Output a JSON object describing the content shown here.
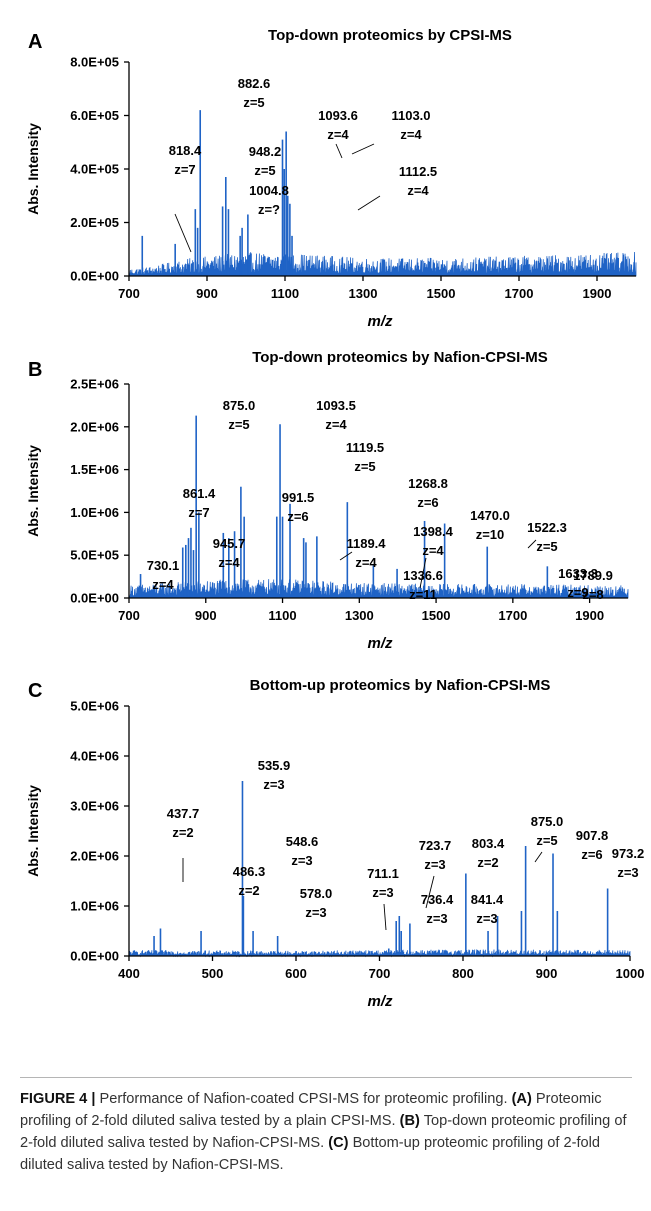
{
  "chart_data": [
    {
      "type": "line",
      "panel": "A",
      "title": "Top-down proteomics by CPSI-MS",
      "xlabel": "m/z",
      "ylabel": "Abs. Intensity",
      "xlim": [
        700,
        2000
      ],
      "ylim": [
        0,
        800000
      ],
      "xticks": [
        700,
        900,
        1100,
        1300,
        1500,
        1700,
        1900
      ],
      "xtick_labels": [
        "700",
        "900",
        "1100",
        "1300",
        "1500",
        "1700",
        "1900"
      ],
      "yticks": [
        0,
        200000,
        400000,
        600000,
        800000
      ],
      "ytick_labels": [
        "0.0E+00",
        "2.0E+05",
        "4.0E+05",
        "6.0E+05",
        "8.0E+05"
      ],
      "baseline": [
        {
          "x": 700,
          "y": 18000
        },
        {
          "x": 760,
          "y": 25000
        },
        {
          "x": 860,
          "y": 45000
        },
        {
          "x": 1000,
          "y": 60000
        },
        {
          "x": 1150,
          "y": 55000
        },
        {
          "x": 1300,
          "y": 45000
        },
        {
          "x": 1500,
          "y": 45000
        },
        {
          "x": 1700,
          "y": 50000
        },
        {
          "x": 1850,
          "y": 55000
        },
        {
          "x": 2000,
          "y": 60000
        }
      ],
      "peaks": [
        {
          "x": 818.4,
          "y": 120000,
          "label": "818.4",
          "charge": "z=7"
        },
        {
          "x": 882.6,
          "y": 620000,
          "label": "882.6",
          "charge": "z=5"
        },
        {
          "x": 948.2,
          "y": 370000,
          "label": "948.2",
          "charge": "z=5"
        },
        {
          "x": 1004.8,
          "y": 230000,
          "label": "1004.8",
          "charge": "z=?"
        },
        {
          "x": 1093.6,
          "y": 510000,
          "label": "1093.6",
          "charge": "z=4"
        },
        {
          "x": 1103.0,
          "y": 540000,
          "label": "1103.0",
          "charge": "z=4"
        },
        {
          "x": 1112.5,
          "y": 270000,
          "label": "1112.5",
          "charge": "z=4"
        },
        {
          "x": 734,
          "y": 150000
        },
        {
          "x": 870,
          "y": 250000
        },
        {
          "x": 876,
          "y": 180000
        },
        {
          "x": 940,
          "y": 260000
        },
        {
          "x": 955,
          "y": 250000
        },
        {
          "x": 985,
          "y": 150000
        },
        {
          "x": 990,
          "y": 180000
        },
        {
          "x": 1098,
          "y": 400000
        },
        {
          "x": 1107,
          "y": 300000
        },
        {
          "x": 1118,
          "y": 150000
        }
      ]
    },
    {
      "type": "line",
      "panel": "B",
      "title": "Top-down proteomics by  Nafion-CPSI-MS",
      "xlabel": "m/z",
      "ylabel": "Abs. Intensity",
      "xlim": [
        700,
        2000
      ],
      "ylim": [
        0,
        2500000
      ],
      "xticks": [
        700,
        900,
        1100,
        1300,
        1500,
        1700,
        1900
      ],
      "xtick_labels": [
        "700",
        "900",
        "1100",
        "1300",
        "1500",
        "1700",
        "1900"
      ],
      "yticks": [
        0,
        500000,
        1000000,
        1500000,
        2000000,
        2500000
      ],
      "ytick_labels": [
        "0.0E+00",
        "5.0E+05",
        "1.0E+06",
        "1.5E+06",
        "2.0E+06",
        "2.5E+06"
      ],
      "baseline": [
        {
          "x": 700,
          "y": 100000
        },
        {
          "x": 900,
          "y": 140000
        },
        {
          "x": 1100,
          "y": 150000
        },
        {
          "x": 1300,
          "y": 120000
        },
        {
          "x": 1500,
          "y": 110000
        },
        {
          "x": 1700,
          "y": 110000
        },
        {
          "x": 2000,
          "y": 100000
        }
      ],
      "peaks": [
        {
          "x": 730.1,
          "y": 280000,
          "label": "730.1",
          "charge": "z=4"
        },
        {
          "x": 861.4,
          "y": 820000,
          "label": "861.4",
          "charge": "z=7"
        },
        {
          "x": 875.0,
          "y": 2130000,
          "label": "875.0",
          "charge": "z=5"
        },
        {
          "x": 945.7,
          "y": 760000,
          "label": "945.7",
          "charge": "z=4"
        },
        {
          "x": 991.5,
          "y": 1300000,
          "label": "991.5",
          "charge": "z=6"
        },
        {
          "x": 1093.5,
          "y": 2030000,
          "label": "1093.5",
          "charge": "z=4"
        },
        {
          "x": 1119.5,
          "y": 1100000,
          "label": "1119.5",
          "charge": "z=5"
        },
        {
          "x": 1189.4,
          "y": 720000,
          "label": "1189.4",
          "charge": "z=4"
        },
        {
          "x": 1268.8,
          "y": 1120000,
          "label": "1268.8",
          "charge": "z=6"
        },
        {
          "x": 1336.6,
          "y": 380000,
          "label": "1336.6",
          "charge": "z=11"
        },
        {
          "x": 1398.4,
          "y": 340000,
          "label": "1398.4",
          "charge": "z=4"
        },
        {
          "x": 1470.0,
          "y": 900000,
          "label": "1470.0",
          "charge": "z=10"
        },
        {
          "x": 1522.3,
          "y": 870000,
          "label": "1522.3",
          "charge": "z=5"
        },
        {
          "x": 1633.3,
          "y": 600000,
          "label": "1633.3",
          "charge": "z=9"
        },
        {
          "x": 1789.9,
          "y": 370000,
          "label": "1789.9",
          "charge": "z=8"
        },
        {
          "x": 840,
          "y": 590000
        },
        {
          "x": 848,
          "y": 620000
        },
        {
          "x": 855,
          "y": 700000
        },
        {
          "x": 868,
          "y": 560000
        },
        {
          "x": 882,
          "y": 1000000
        },
        {
          "x": 960,
          "y": 700000
        },
        {
          "x": 975,
          "y": 780000
        },
        {
          "x": 1000,
          "y": 950000
        },
        {
          "x": 1085,
          "y": 950000
        },
        {
          "x": 1100,
          "y": 950000
        },
        {
          "x": 1155,
          "y": 700000
        },
        {
          "x": 1161,
          "y": 650000
        }
      ]
    },
    {
      "type": "line",
      "panel": "C",
      "title": "Bottom-up proteomics by Nafion-CPSI-MS",
      "xlabel": "m/z",
      "ylabel": "Abs. Intensity",
      "xlim": [
        400,
        1000
      ],
      "ylim": [
        0,
        5000000
      ],
      "xticks": [
        400,
        500,
        600,
        700,
        800,
        900,
        1000
      ],
      "xtick_labels": [
        "400",
        "500",
        "600",
        "700",
        "800",
        "900",
        "1000"
      ],
      "yticks": [
        0,
        1000000,
        2000000,
        3000000,
        4000000,
        5000000
      ],
      "ytick_labels": [
        "0.0E+00",
        "1.0E+06",
        "2.0E+06",
        "3.0E+06",
        "4.0E+06",
        "5.0E+06"
      ],
      "baseline": [
        {
          "x": 400,
          "y": 80000
        },
        {
          "x": 600,
          "y": 70000
        },
        {
          "x": 800,
          "y": 90000
        },
        {
          "x": 1000,
          "y": 80000
        }
      ],
      "peaks": [
        {
          "x": 437.7,
          "y": 550000,
          "label": "437.7",
          "charge": "z=2"
        },
        {
          "x": 486.3,
          "y": 500000,
          "label": "486.3",
          "charge": "z=2"
        },
        {
          "x": 535.9,
          "y": 3500000,
          "label": "535.9",
          "charge": "z=3"
        },
        {
          "x": 548.6,
          "y": 500000,
          "label": "548.6",
          "charge": "z=3"
        },
        {
          "x": 578.0,
          "y": 400000,
          "label": "578.0",
          "charge": "z=3"
        },
        {
          "x": 711.1,
          "y": 150000,
          "label": "711.1",
          "charge": "z=3"
        },
        {
          "x": 723.7,
          "y": 800000,
          "label": "723.7",
          "charge": "z=3"
        },
        {
          "x": 736.4,
          "y": 650000,
          "label": "736.4",
          "charge": "z=3"
        },
        {
          "x": 803.4,
          "y": 1650000,
          "label": "803.4",
          "charge": "z=2"
        },
        {
          "x": 841.4,
          "y": 800000,
          "label": "841.4",
          "charge": "z=3"
        },
        {
          "x": 875.0,
          "y": 2200000,
          "label": "875.0",
          "charge": "z=5"
        },
        {
          "x": 907.8,
          "y": 2050000,
          "label": "907.8",
          "charge": "z=6"
        },
        {
          "x": 973.2,
          "y": 1350000,
          "label": "973.2",
          "charge": "z=3"
        },
        {
          "x": 430,
          "y": 400000
        },
        {
          "x": 537,
          "y": 1200000
        },
        {
          "x": 720,
          "y": 700000
        },
        {
          "x": 726,
          "y": 500000
        },
        {
          "x": 830,
          "y": 500000
        },
        {
          "x": 870,
          "y": 900000
        },
        {
          "x": 913,
          "y": 900000
        }
      ]
    }
  ],
  "caption": {
    "label": "FIGURE 4 |",
    "intro": "Performance of Nafion-coated CPSI-MS for proteomic profiling.",
    "a_label": "(A)",
    "a_text": "Proteomic profiling of 2-fold diluted saliva tested by a plain CPSI-MS.",
    "b_label": "(B)",
    "b_text": "Top-down proteomic profiling of 2-fold diluted saliva tested by Nafion-CPSI-MS.",
    "c_label": "(C)",
    "c_text": "Bottom-up proteomic profiling of 2-fold diluted saliva tested by Nafion-CPSI-MS."
  }
}
